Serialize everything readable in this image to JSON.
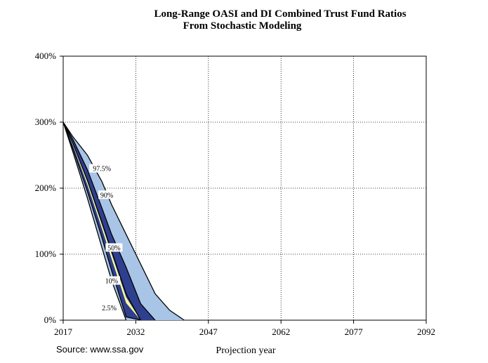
{
  "chart_data": {
    "type": "area",
    "title": "Long-Range OASI and DI Combined Trust Fund Ratios",
    "subtitle": "From Stochastic Modeling",
    "xlabel": "Projection year",
    "ylabel": "",
    "xlim": [
      2017,
      2092
    ],
    "ylim": [
      0,
      400
    ],
    "x_ticks": [
      "2017",
      "2032",
      "2047",
      "2062",
      "2077",
      "2092"
    ],
    "y_ticks": [
      "0%",
      "100%",
      "200%",
      "300%",
      "400%"
    ],
    "grid": true,
    "source": "Source: www.ssa.gov",
    "x": [
      2017,
      2019,
      2022,
      2025,
      2027,
      2030,
      2033,
      2036,
      2039,
      2042
    ],
    "series": [
      {
        "name": "2.5%",
        "values": [
          300,
          255,
          185,
          110,
          60,
          0,
          null,
          null,
          null,
          null
        ]
      },
      {
        "name": "10%",
        "values": [
          300,
          260,
          195,
          125,
          75,
          5,
          0,
          null,
          null,
          null
        ]
      },
      {
        "name": "50%",
        "values": [
          300,
          268,
          212,
          148,
          105,
          40,
          0,
          null,
          null,
          null
        ]
      },
      {
        "name": "90%",
        "values": [
          300,
          274,
          228,
          170,
          130,
          80,
          25,
          0,
          null,
          null
        ]
      },
      {
        "name": "97.5%",
        "values": [
          300,
          278,
          250,
          210,
          175,
          130,
          85,
          40,
          15,
          0
        ]
      }
    ],
    "series_labels": [
      "97.5%",
      "90%",
      "50%",
      "10%",
      "2.5%"
    ],
    "colors": {
      "outer_band": "#a8c4e6",
      "middle_band": "#2f3f8f",
      "inner_band": "#ffff99",
      "outline": "#000000",
      "grid": "#000000"
    }
  }
}
